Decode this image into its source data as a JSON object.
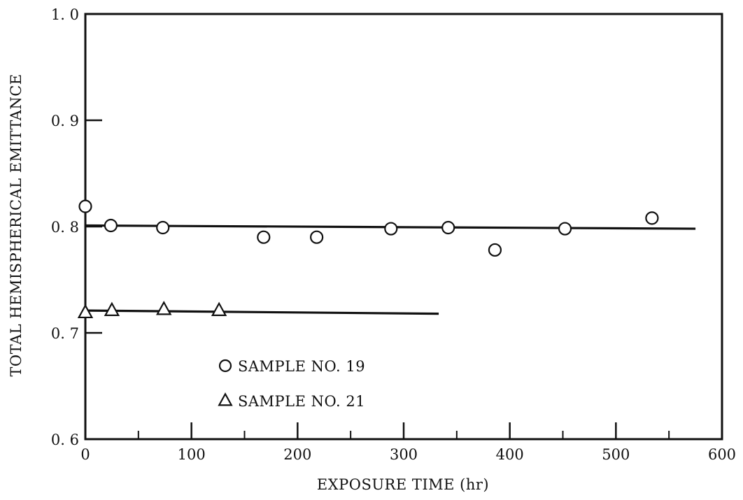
{
  "chart_data": {
    "type": "scatter",
    "xlabel": "EXPOSURE TIME (hr)",
    "ylabel": "TOTAL HEMISPHERICAL EMITTANCE",
    "xlim": [
      0,
      600
    ],
    "ylim": [
      0.6,
      1.0
    ],
    "x_ticks": [
      0,
      100,
      200,
      300,
      400,
      500,
      600
    ],
    "x_tick_labels": [
      "0",
      "100",
      "200",
      "300",
      "400",
      "500",
      "600"
    ],
    "y_ticks": [
      0.6,
      0.7,
      0.8,
      0.9,
      1.0
    ],
    "y_tick_labels": [
      "0. 6",
      "0. 7",
      "0. 8",
      "0. 9",
      "1. 0"
    ],
    "grid": false,
    "legend_position": "lower-left",
    "series": [
      {
        "name": "SAMPLE NO. 19",
        "marker": "circle",
        "x": [
          0,
          24,
          73,
          168,
          218,
          288,
          342,
          386,
          452,
          534
        ],
        "y": [
          0.819,
          0.801,
          0.799,
          0.79,
          0.79,
          0.798,
          0.799,
          0.778,
          0.798,
          0.808
        ],
        "fit_line": {
          "x": [
            0,
            575
          ],
          "y": [
            0.801,
            0.798
          ]
        }
      },
      {
        "name": "SAMPLE NO. 21",
        "marker": "triangle",
        "x": [
          0,
          25,
          74,
          126
        ],
        "y": [
          0.719,
          0.721,
          0.722,
          0.721
        ],
        "fit_line": {
          "x": [
            0,
            333
          ],
          "y": [
            0.721,
            0.718
          ]
        }
      }
    ],
    "colors": {
      "ink": "#111111",
      "background": "#ffffff"
    }
  }
}
